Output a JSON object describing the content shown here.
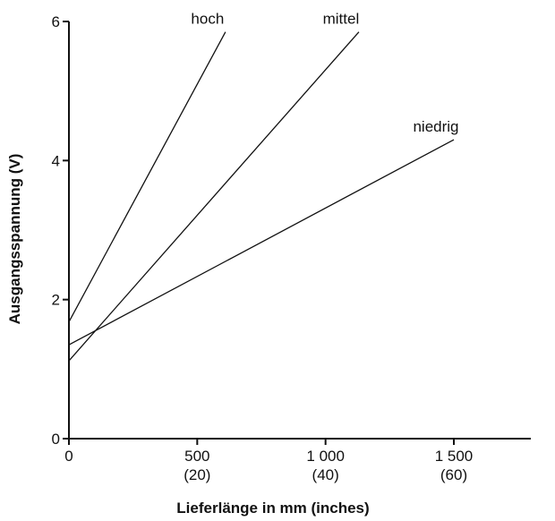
{
  "chart_data": {
    "type": "line",
    "title": "",
    "xlabel": "Lieferlänge in  mm  (inches)",
    "ylabel": "Ausgangsspannung  (V)",
    "xlim": [
      0,
      1800
    ],
    "ylim": [
      0,
      6
    ],
    "grid": false,
    "legend": "none",
    "x_ticks": [
      {
        "value": 0,
        "label": "0",
        "sublabel": ""
      },
      {
        "value": 500,
        "label": "500",
        "sublabel": "(20)"
      },
      {
        "value": 1000,
        "label": "1 000",
        "sublabel": "(40)"
      },
      {
        "value": 1500,
        "label": "1 500",
        "sublabel": "(60)"
      }
    ],
    "y_ticks": [
      {
        "value": 0,
        "label": "0"
      },
      {
        "value": 2,
        "label": "2"
      },
      {
        "value": 4,
        "label": "4"
      },
      {
        "value": 6,
        "label": "6"
      }
    ],
    "series": [
      {
        "name": "hoch",
        "x": [
          0,
          610
        ],
        "y": [
          1.68,
          5.85
        ]
      },
      {
        "name": "mittel",
        "x": [
          0,
          1130
        ],
        "y": [
          1.12,
          5.85
        ]
      },
      {
        "name": "niedrig",
        "x": [
          0,
          1500
        ],
        "y": [
          1.35,
          4.3
        ]
      }
    ],
    "line_color": "#111111"
  }
}
